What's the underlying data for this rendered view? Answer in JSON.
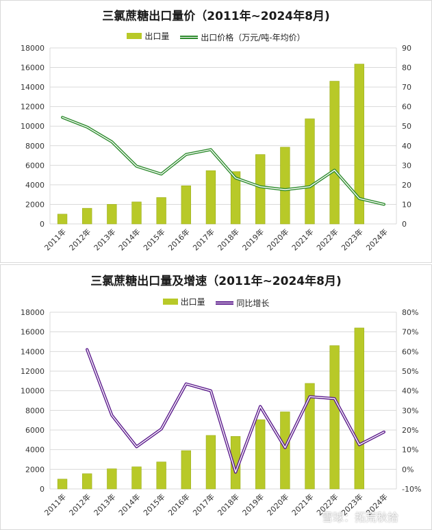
{
  "charts": [
    {
      "title": "三氯蔗糖出口量价（2011年~2024年8月)",
      "legend": {
        "bar_label": "出口量",
        "line_label": "出口价格（万元/吨-年均价）"
      },
      "colors": {
        "bar": "#b8c928",
        "bar_edge": "#9aad1a",
        "line": "#2e8b2e",
        "line_inner": "#ffffff"
      }
    },
    {
      "title": "三氯蔗糖出口量及增速（2011年~2024年8月)",
      "legend": {
        "bar_label": "出口量",
        "line_label": "同比增长"
      },
      "colors": {
        "bar": "#b8c928",
        "bar_edge": "#9aad1a",
        "line": "#5b1a8c",
        "line_inner": "#ffffff"
      }
    }
  ],
  "watermark": "雪球：拓荒秋拾",
  "chart_data": [
    {
      "type": "bar",
      "title": "三氯蔗糖出口量价（2011年~2024年8月)",
      "categories": [
        "2011年",
        "2012年",
        "2013年",
        "2014年",
        "2015年",
        "2016年",
        "2017年",
        "2018年",
        "2019年",
        "2020年",
        "2021年",
        "2022年",
        "2023年",
        "2024年"
      ],
      "series": [
        {
          "name": "出口量",
          "type": "bar",
          "axis": "left",
          "values": [
            1000,
            1600,
            2000,
            2250,
            2700,
            3900,
            5450,
            5350,
            7100,
            7850,
            10750,
            14600,
            16350,
            null
          ]
        },
        {
          "name": "出口价格（万元/吨-年均价）",
          "type": "line",
          "axis": "right",
          "values": [
            54.5,
            49.5,
            42,
            29.5,
            25.5,
            35.5,
            38,
            23.5,
            19,
            17.5,
            19,
            27.5,
            13,
            10
          ]
        }
      ],
      "y_left": {
        "min": 0,
        "max": 18000,
        "step": 2000,
        "ticks": [
          "0",
          "2000",
          "4000",
          "6000",
          "8000",
          "10000",
          "12000",
          "14000",
          "16000",
          "18000"
        ]
      },
      "y_right": {
        "min": 0,
        "max": 90,
        "step": 10,
        "ticks": [
          "0",
          "10",
          "20",
          "30",
          "40",
          "50",
          "60",
          "70",
          "80",
          "90"
        ]
      },
      "grid": true,
      "legend_position": "top"
    },
    {
      "type": "bar",
      "title": "三氯蔗糖出口量及增速（2011年~2024年8月)",
      "categories": [
        "2011年",
        "2012年",
        "2013年",
        "2014年",
        "2015年",
        "2016年",
        "2017年",
        "2018年",
        "2019年",
        "2020年",
        "2021年",
        "2022年",
        "2023年",
        "2024年"
      ],
      "series": [
        {
          "name": "出口量",
          "type": "bar",
          "axis": "left",
          "values": [
            1000,
            1550,
            2050,
            2250,
            2750,
            3900,
            5450,
            5350,
            7050,
            7850,
            10750,
            14600,
            16400,
            null
          ]
        },
        {
          "name": "同比增长",
          "type": "line",
          "axis": "right",
          "values": [
            null,
            61,
            27.5,
            11.5,
            20.5,
            43.5,
            40,
            -1.5,
            32,
            11,
            37,
            36,
            12.5,
            19
          ]
        }
      ],
      "y_left": {
        "min": 0,
        "max": 18000,
        "step": 2000,
        "ticks": [
          "0",
          "2000",
          "4000",
          "6000",
          "8000",
          "10000",
          "12000",
          "14000",
          "16000",
          "18000"
        ]
      },
      "y_right": {
        "min": -10,
        "max": 80,
        "step": 10,
        "unit": "%",
        "ticks": [
          "-10%",
          "0%",
          "10%",
          "20%",
          "30%",
          "40%",
          "50%",
          "60%",
          "70%",
          "80%"
        ]
      },
      "grid": true,
      "legend_position": "top"
    }
  ]
}
